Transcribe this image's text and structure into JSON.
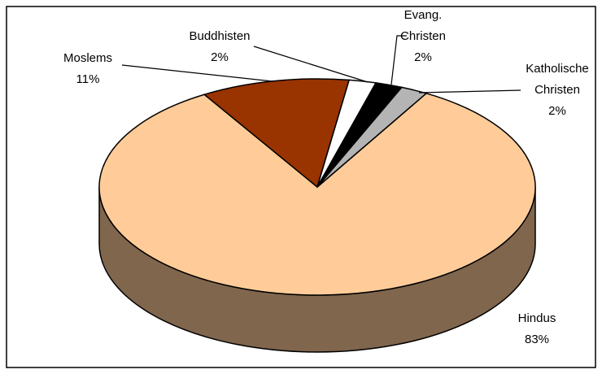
{
  "chart_data": {
    "type": "pie",
    "categories": [
      "Hindus",
      "Moslems",
      "Buddhisten",
      "Evang. Christen",
      "Katholische Christen"
    ],
    "values": [
      83,
      11,
      2,
      2,
      2
    ],
    "value_labels": [
      "83%",
      "11%",
      "2%",
      "2%",
      "2%"
    ],
    "colors": [
      "#ffcc99",
      "#993300",
      "#ffffff",
      "#000000",
      "#b4b4b4"
    ]
  }
}
